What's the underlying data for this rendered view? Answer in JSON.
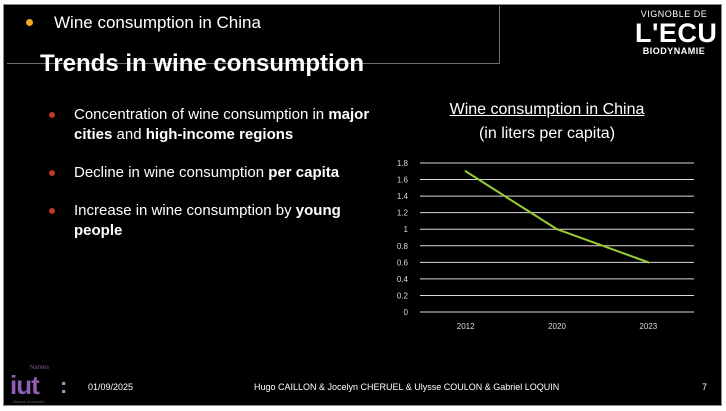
{
  "colors": {
    "background": "#000000",
    "text": "#ffffff",
    "topic_dot": "#f5a623",
    "bullet_dot": "#c0392b",
    "line": "#9acd32",
    "gridline": "#d9d9d9",
    "axis_text": "#d9d9d9"
  },
  "header": {
    "topic": "Wine consumption in China",
    "title": "Trends in wine consumption"
  },
  "logo": {
    "top": "VIGNOBLE DE",
    "main": "L'ECU",
    "bottom": "BIODYNAMIE"
  },
  "bullets": [
    {
      "parts": [
        {
          "text": "Concentration of wine consumption in ",
          "bold": false
        },
        {
          "text": "major cities",
          "bold": true
        },
        {
          "text": " and ",
          "bold": false
        },
        {
          "text": "high-income regions",
          "bold": true
        }
      ]
    },
    {
      "parts": [
        {
          "text": "Decline in wine consumption ",
          "bold": false
        },
        {
          "text": "per capita",
          "bold": true
        }
      ]
    },
    {
      "parts": [
        {
          "text": "Increase in wine consumption by ",
          "bold": false
        },
        {
          "text": "young people",
          "bold": true
        }
      ]
    }
  ],
  "chart_data": {
    "type": "line",
    "title": "Wine consumption in China",
    "subtitle": "(in liters per capita)",
    "categories": [
      "2012",
      "2020",
      "2023"
    ],
    "values": [
      1.7,
      1.0,
      0.6
    ],
    "ylim": [
      0,
      1.8
    ],
    "yticks": [
      "0",
      "0.2",
      "0.4",
      "0.6",
      "0.8",
      "1",
      "1.2",
      "1.4",
      "1.6",
      "1.8"
    ],
    "grid": true
  },
  "footer": {
    "date": "01/09/2025",
    "authors": "Hugo CAILLON & Jocelyn CHERUEL & Ulysse COULON & Gabriel LOQUIN",
    "page": "7"
  },
  "iut_logo": {
    "small": "Nantes",
    "word": "iut",
    "colon": ":",
    "bottom": "Nantes Université"
  }
}
